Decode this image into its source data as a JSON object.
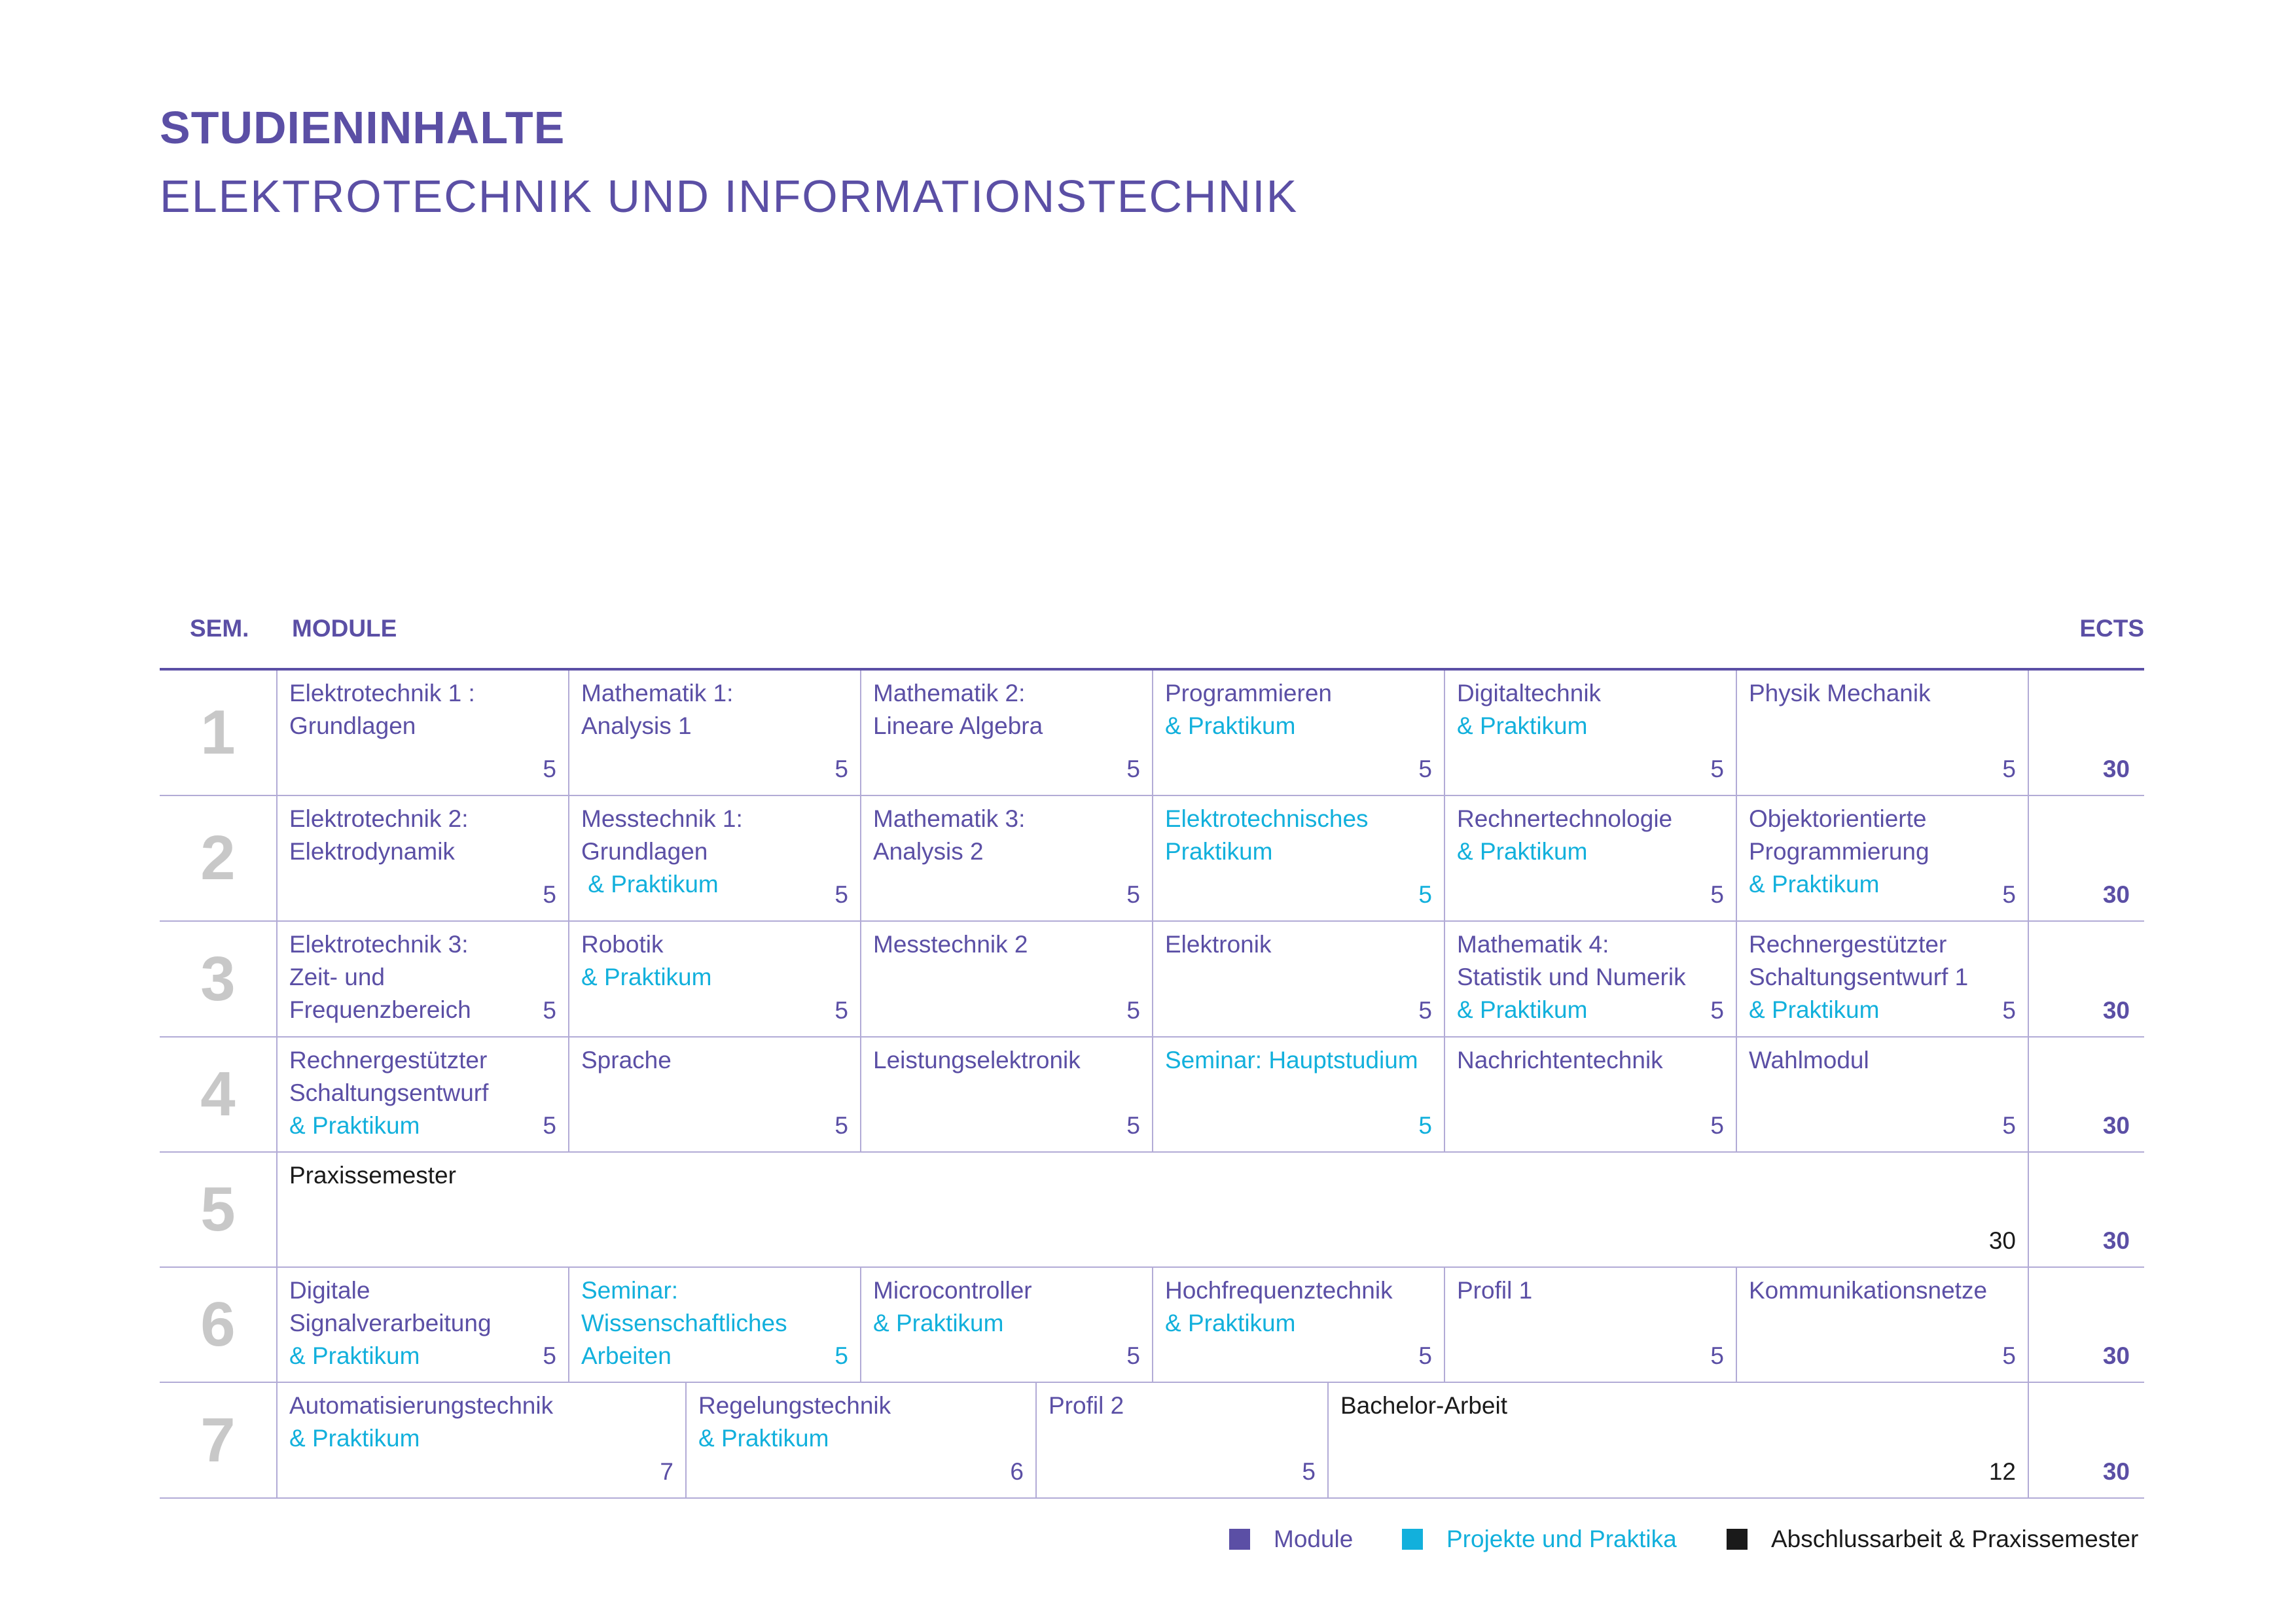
{
  "title": "STUDIENINHALTE",
  "subtitle": "ELEKTROTECHNIK UND INFORMATIONSTECHNIK",
  "table": {
    "header_sem": "SEM.",
    "header_module": "MODULE",
    "header_ects": "ECTS",
    "rows": [
      {
        "sem": "1",
        "total": "30",
        "cells": [
          {
            "lines": [
              {
                "text": "Elektrotechnik 1 :",
                "kind": "module"
              },
              {
                "text": "Grundlagen",
                "kind": "module"
              }
            ],
            "ects": "5",
            "ects_kind": "module"
          },
          {
            "lines": [
              {
                "text": "Mathematik 1:",
                "kind": "module"
              },
              {
                "text": "Analysis 1",
                "kind": "module"
              }
            ],
            "ects": "5",
            "ects_kind": "module"
          },
          {
            "lines": [
              {
                "text": "Mathematik 2:",
                "kind": "module"
              },
              {
                "text": "Lineare Algebra",
                "kind": "module"
              }
            ],
            "ects": "5",
            "ects_kind": "module"
          },
          {
            "lines": [
              {
                "text": "Programmieren",
                "kind": "module"
              },
              {
                "text": "& Praktikum",
                "kind": "project"
              }
            ],
            "ects": "5",
            "ects_kind": "module"
          },
          {
            "lines": [
              {
                "text": "Digitaltechnik",
                "kind": "module"
              },
              {
                "text": "& Praktikum",
                "kind": "project"
              }
            ],
            "ects": "5",
            "ects_kind": "module"
          },
          {
            "lines": [
              {
                "text": "Physik Mechanik",
                "kind": "module"
              }
            ],
            "ects": "5",
            "ects_kind": "module"
          }
        ]
      },
      {
        "sem": "2",
        "total": "30",
        "cells": [
          {
            "lines": [
              {
                "text": "Elektrotechnik 2:",
                "kind": "module"
              },
              {
                "text": "Elektrodynamik",
                "kind": "module"
              }
            ],
            "ects": "5",
            "ects_kind": "module"
          },
          {
            "lines": [
              {
                "text": "Messtechnik 1:",
                "kind": "module"
              },
              {
                "text": "Grundlagen",
                "kind": "module"
              },
              {
                "text": " & Praktikum",
                "kind": "project"
              }
            ],
            "ects": "5",
            "ects_kind": "module"
          },
          {
            "lines": [
              {
                "text": "Mathematik 3:",
                "kind": "module"
              },
              {
                "text": "Analysis 2",
                "kind": "module"
              }
            ],
            "ects": "5",
            "ects_kind": "module"
          },
          {
            "lines": [
              {
                "text": "Elektrotechnisches",
                "kind": "project"
              },
              {
                "text": "Praktikum",
                "kind": "project"
              }
            ],
            "ects": "5",
            "ects_kind": "project"
          },
          {
            "lines": [
              {
                "text": "Rechnertechnologie",
                "kind": "module"
              },
              {
                "text": "& Praktikum",
                "kind": "project"
              }
            ],
            "ects": "5",
            "ects_kind": "module"
          },
          {
            "lines": [
              {
                "text": "Objektorientierte",
                "kind": "module"
              },
              {
                "text": "Programmierung",
                "kind": "module"
              },
              {
                "text": "& Praktikum",
                "kind": "project"
              }
            ],
            "ects": "5",
            "ects_kind": "module"
          }
        ]
      },
      {
        "sem": "3",
        "total": "30",
        "cells": [
          {
            "lines": [
              {
                "text": "Elektrotechnik 3:",
                "kind": "module"
              },
              {
                "text": "Zeit- und",
                "kind": "module"
              },
              {
                "text": "Frequenzbereich",
                "kind": "module"
              }
            ],
            "ects": "5",
            "ects_kind": "module"
          },
          {
            "lines": [
              {
                "text": "Robotik",
                "kind": "module"
              },
              {
                "text": "& Praktikum",
                "kind": "project"
              }
            ],
            "ects": "5",
            "ects_kind": "module"
          },
          {
            "lines": [
              {
                "text": "Messtechnik 2",
                "kind": "module"
              }
            ],
            "ects": "5",
            "ects_kind": "module"
          },
          {
            "lines": [
              {
                "text": "Elektronik",
                "kind": "module"
              }
            ],
            "ects": "5",
            "ects_kind": "module"
          },
          {
            "lines": [
              {
                "text": "Mathematik 4:",
                "kind": "module"
              },
              {
                "text": "Statistik und Numerik",
                "kind": "module"
              },
              {
                "text": "& Praktikum",
                "kind": "project"
              }
            ],
            "ects": "5",
            "ects_kind": "module"
          },
          {
            "lines": [
              {
                "text": "Rechnergestützter",
                "kind": "module"
              },
              {
                "text": "Schaltungsentwurf 1",
                "kind": "module"
              },
              {
                "text": "& Praktikum",
                "kind": "project"
              }
            ],
            "ects": "5",
            "ects_kind": "module"
          }
        ]
      },
      {
        "sem": "4",
        "total": "30",
        "cells": [
          {
            "lines": [
              {
                "text": "Rechnergestützter",
                "kind": "module"
              },
              {
                "text": "Schaltungsentwurf",
                "kind": "module"
              },
              {
                "text": "& Praktikum",
                "kind": "project"
              }
            ],
            "ects": "5",
            "ects_kind": "module"
          },
          {
            "lines": [
              {
                "text": "Sprache",
                "kind": "module"
              }
            ],
            "ects": "5",
            "ects_kind": "module"
          },
          {
            "lines": [
              {
                "text": "Leistungselektronik",
                "kind": "module"
              }
            ],
            "ects": "5",
            "ects_kind": "module"
          },
          {
            "lines": [
              {
                "text": "Seminar: Hauptstudium",
                "kind": "project"
              }
            ],
            "ects": "5",
            "ects_kind": "project"
          },
          {
            "lines": [
              {
                "text": "Nachrichtentechnik",
                "kind": "module"
              }
            ],
            "ects": "5",
            "ects_kind": "module"
          },
          {
            "lines": [
              {
                "text": "Wahlmodul",
                "kind": "module"
              }
            ],
            "ects": "5",
            "ects_kind": "module"
          }
        ]
      },
      {
        "sem": "5",
        "total": "30",
        "cells": [
          {
            "lines": [
              {
                "text": "Praxissemester",
                "kind": "final"
              }
            ],
            "ects": "30",
            "ects_kind": "final"
          }
        ]
      },
      {
        "sem": "6",
        "total": "30",
        "cells": [
          {
            "lines": [
              {
                "text": "Digitale",
                "kind": "module"
              },
              {
                "text": "Signalverarbeitung",
                "kind": "module"
              },
              {
                "text": "& Praktikum",
                "kind": "project"
              }
            ],
            "ects": "5",
            "ects_kind": "module"
          },
          {
            "lines": [
              {
                "text": "Seminar:",
                "kind": "project"
              },
              {
                "text": "Wissenschaftliches",
                "kind": "project"
              },
              {
                "text": "Arbeiten",
                "kind": "project"
              }
            ],
            "ects": "5",
            "ects_kind": "project"
          },
          {
            "lines": [
              {
                "text": "Microcontroller",
                "kind": "module"
              },
              {
                "text": "& Praktikum",
                "kind": "project"
              }
            ],
            "ects": "5",
            "ects_kind": "module"
          },
          {
            "lines": [
              {
                "text": "Hochfrequenztechnik",
                "kind": "module"
              },
              {
                "text": "& Praktikum",
                "kind": "project"
              }
            ],
            "ects": "5",
            "ects_kind": "module"
          },
          {
            "lines": [
              {
                "text": "Profil 1",
                "kind": "module"
              }
            ],
            "ects": "5",
            "ects_kind": "module"
          },
          {
            "lines": [
              {
                "text": "Kommunikationsnetze",
                "kind": "module"
              }
            ],
            "ects": "5",
            "ects_kind": "module"
          }
        ]
      },
      {
        "sem": "7",
        "total": "30",
        "cells": [
          {
            "lines": [
              {
                "text": "Automatisierungstechnik",
                "kind": "module"
              },
              {
                "text": "& Praktikum",
                "kind": "project"
              }
            ],
            "ects": "7",
            "ects_kind": "module"
          },
          {
            "lines": [
              {
                "text": "Regelungstechnik",
                "kind": "module"
              },
              {
                "text": "& Praktikum",
                "kind": "project"
              }
            ],
            "ects": "6",
            "ects_kind": "module"
          },
          {
            "lines": [
              {
                "text": "Profil 2",
                "kind": "module"
              }
            ],
            "ects": "5",
            "ects_kind": "module"
          },
          {
            "lines": [
              {
                "text": "Bachelor-Arbeit",
                "kind": "final"
              }
            ],
            "ects": "12",
            "ects_kind": "final"
          }
        ]
      }
    ]
  },
  "legend": [
    {
      "label": "Module",
      "kind": "module"
    },
    {
      "label": "Projekte und Praktika",
      "kind": "project"
    },
    {
      "label": "Abschlussarbeit & Praxissemester",
      "kind": "final"
    }
  ],
  "colors": {
    "module": "#5b4fa5",
    "project": "#12b0dc",
    "final": "#1a1a1a",
    "semester_number": "#c8c8c8",
    "grid_line": "#b2abd6"
  }
}
